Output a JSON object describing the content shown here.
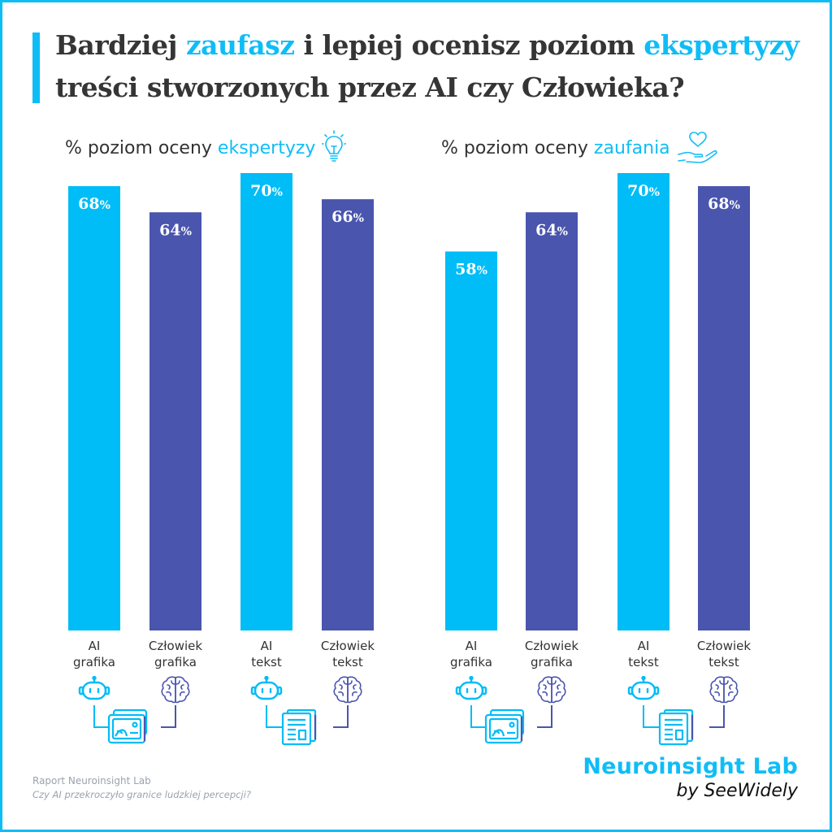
{
  "title": {
    "line1_a": "Bardziej ",
    "line1_b": "zaufasz",
    "line1_c": " i lepiej ocenisz poziom ",
    "line1_d": "ekspertyzy",
    "line2": "treści stworzonych przez AI czy Człowieka?"
  },
  "panels": [
    {
      "prefix": "% poziom oceny ",
      "highlight": "ekspertyzy",
      "icon": "lightbulb-icon"
    },
    {
      "prefix": "% poziom oceny ",
      "highlight": "zaufania",
      "icon": "heart-hand-icon"
    }
  ],
  "colors": {
    "ai": "#00bcf7",
    "human": "#4a55ad",
    "accent": "#0fbdf6"
  },
  "chart_data": [
    {
      "type": "bar",
      "title": "% poziom oceny ekspertyzy",
      "categories": [
        "AI grafika",
        "Człowiek grafika",
        "AI tekst",
        "Człowiek tekst"
      ],
      "values": [
        68,
        64,
        70,
        66
      ],
      "value_labels": [
        "68%",
        "64%",
        "70%",
        "66%"
      ],
      "ylim": [
        0,
        100
      ]
    },
    {
      "type": "bar",
      "title": "% poziom oceny zaufania",
      "categories": [
        "AI grafika",
        "Człowiek grafika",
        "AI tekst",
        "Człowiek tekst"
      ],
      "values": [
        58,
        64,
        70,
        68
      ],
      "value_labels": [
        "58%",
        "64%",
        "70%",
        "68%"
      ],
      "ylim": [
        0,
        100
      ]
    }
  ],
  "category_labels": [
    [
      "AI",
      "grafika"
    ],
    [
      "Człowiek",
      "grafika"
    ],
    [
      "AI",
      "tekst"
    ],
    [
      "Człowiek",
      "tekst"
    ]
  ],
  "footer": {
    "line1": "Raport Neuroinsight Lab",
    "line2": "Czy AI przekroczyło granice ludzkiej percepcji?"
  },
  "brand": {
    "name": "Neuroinsight Lab",
    "by": "by SeeWidely"
  }
}
